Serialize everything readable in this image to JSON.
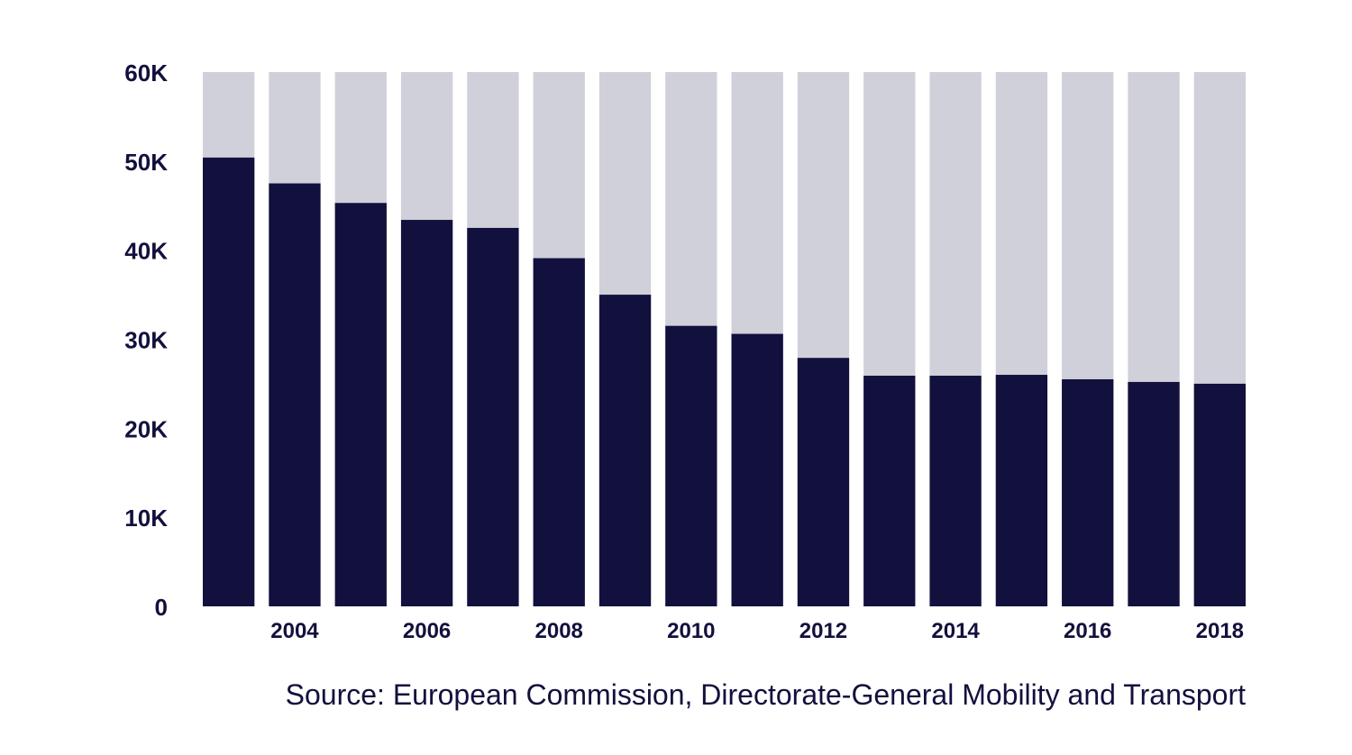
{
  "chart_data": {
    "type": "bar",
    "title": "",
    "xlabel": "",
    "ylabel": "",
    "ylim": [
      0,
      60000
    ],
    "yticks": [
      {
        "value": 0,
        "label": "0"
      },
      {
        "value": 10000,
        "label": "10K"
      },
      {
        "value": 20000,
        "label": "20K"
      },
      {
        "value": 30000,
        "label": "30K"
      },
      {
        "value": 40000,
        "label": "40K"
      },
      {
        "value": 50000,
        "label": "50K"
      },
      {
        "value": 60000,
        "label": "60K"
      }
    ],
    "categories": [
      "2003",
      "2004",
      "2005",
      "2006",
      "2007",
      "2008",
      "2009",
      "2010",
      "2011",
      "2012",
      "2013",
      "2014",
      "2015",
      "2016",
      "2017",
      "2018"
    ],
    "visible_xtick_labels": [
      "2004",
      "2006",
      "2008",
      "2010",
      "2012",
      "2014",
      "2016",
      "2018"
    ],
    "values": [
      50400,
      47500,
      45300,
      43400,
      42500,
      39100,
      35000,
      31500,
      30600,
      27900,
      25900,
      25900,
      26000,
      25500,
      25200,
      25000
    ],
    "background_value": 60000,
    "colors": {
      "bar": "#12103d",
      "background_bar": "#d0d0da",
      "text": "#12103d"
    },
    "source": "Source: European Commission, Directorate-General Mobility and Transport"
  }
}
